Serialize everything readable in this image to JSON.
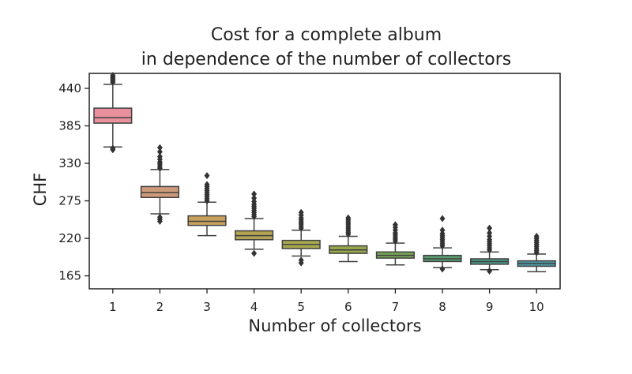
{
  "chart_data": {
    "type": "box",
    "title_lines": [
      "Cost for a complete album",
      "in dependence of the number of collectors"
    ],
    "xlabel": "Number of collectors",
    "ylabel": "CHF",
    "ylim": [
      146,
      462
    ],
    "yticks": [
      165,
      220,
      275,
      330,
      385,
      440
    ],
    "categories": [
      "1",
      "2",
      "3",
      "4",
      "5",
      "6",
      "7",
      "8",
      "9",
      "10"
    ],
    "grid": false,
    "series": [
      {
        "category": "1",
        "color": "#e8919c",
        "whisker_low": 354,
        "q1": 389,
        "median": 397,
        "q3": 411,
        "whisker_high": 446,
        "outliers": [
          350,
          352,
          449,
          451,
          453,
          455,
          457,
          459
        ]
      },
      {
        "category": "2",
        "color": "#cf9a7c",
        "whisker_low": 256,
        "q1": 280,
        "median": 287,
        "q3": 296,
        "whisker_high": 321,
        "outliers": [
          245,
          248,
          251,
          323,
          326,
          329,
          332,
          336,
          340,
          347,
          353
        ]
      },
      {
        "category": "3",
        "color": "#c9a15f",
        "whisker_low": 224,
        "q1": 239,
        "median": 245,
        "q3": 253,
        "whisker_high": 273,
        "outliers": [
          275,
          278,
          281,
          284,
          287,
          290,
          293,
          296,
          299,
          312
        ]
      },
      {
        "category": "4",
        "color": "#b3a353",
        "whisker_low": 204,
        "q1": 218,
        "median": 224,
        "q3": 231,
        "whisker_high": 249,
        "outliers": [
          198,
          252,
          255,
          258,
          261,
          264,
          267,
          270,
          274,
          279,
          285
        ]
      },
      {
        "category": "5",
        "color": "#a7a84f",
        "whisker_low": 194,
        "q1": 205,
        "median": 211,
        "q3": 217,
        "whisker_high": 232,
        "outliers": [
          184,
          188,
          235,
          238,
          241,
          244,
          247,
          250,
          254,
          258
        ]
      },
      {
        "category": "6",
        "color": "#96a64d",
        "whisker_low": 186,
        "q1": 198,
        "median": 203,
        "q3": 209,
        "whisker_high": 223,
        "outliers": [
          226,
          229,
          232,
          235,
          238,
          241,
          244,
          247,
          250
        ]
      },
      {
        "category": "7",
        "color": "#77a655",
        "whisker_low": 181,
        "q1": 191,
        "median": 195,
        "q3": 200,
        "whisker_high": 213,
        "outliers": [
          216,
          219,
          222,
          225,
          228,
          232,
          236,
          240
        ]
      },
      {
        "category": "8",
        "color": "#5a9c6e",
        "whisker_low": 177,
        "q1": 186,
        "median": 190,
        "q3": 195,
        "whisker_high": 206,
        "outliers": [
          175,
          209,
          212,
          215,
          218,
          221,
          224,
          227,
          232,
          249
        ]
      },
      {
        "category": "9",
        "color": "#4b9a8a",
        "whisker_low": 174,
        "q1": 182,
        "median": 186,
        "q3": 190,
        "whisker_high": 200,
        "outliers": [
          172,
          203,
          206,
          209,
          212,
          215,
          218,
          223,
          228,
          235
        ]
      },
      {
        "category": "10",
        "color": "#4a9a9f",
        "whisker_low": 171,
        "q1": 179,
        "median": 183,
        "q3": 187,
        "whisker_high": 197,
        "outliers": [
          199,
          202,
          205,
          208,
          211,
          214,
          217,
          220,
          223
        ]
      }
    ]
  }
}
